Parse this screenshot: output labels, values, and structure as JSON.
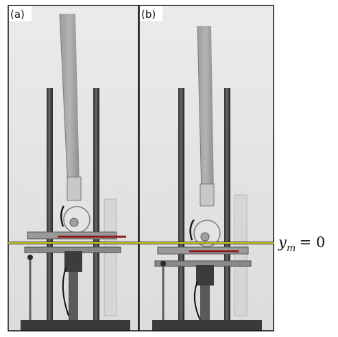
{
  "panels": [
    {
      "label": "(a)"
    },
    {
      "label": "(b)"
    }
  ],
  "equation": {
    "base": "y",
    "subscript": "m",
    "rest": " = 0"
  },
  "colors": {
    "photo_background": "#e7e7e5",
    "reference_line": "#d9d92a",
    "marker_line": "#8a1a1a",
    "frame": "#111111"
  }
}
